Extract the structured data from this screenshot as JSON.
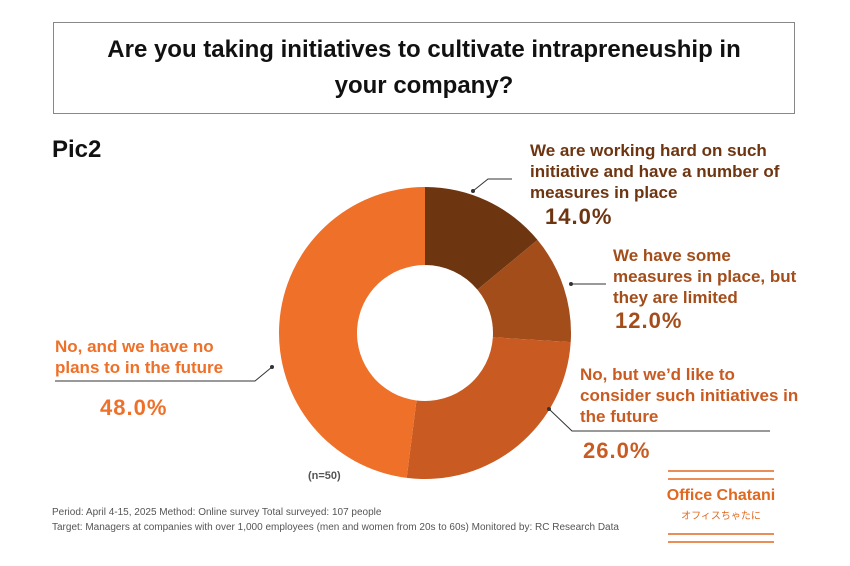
{
  "chart_data": {
    "type": "donut",
    "title": "Are you taking initiatives to cultivate intrapreneuship in your company?",
    "subtitle": "Pic2",
    "annotation": "(n=50)",
    "categories": [
      "We are working hard on such initiative and have a number of measures in place",
      "We have some measures in place, but they are limited",
      "No, but we’d like to consider such initiatives in the future",
      "No, and we have no plans to in the future"
    ],
    "values": [
      14,
      12,
      26,
      48
    ],
    "value_labels": [
      "14.0%",
      "12.0%",
      "26.0%",
      "48.0%"
    ],
    "colors": [
      "#6e3511",
      "#a34d1b",
      "#c95b22",
      "#ee7029"
    ],
    "notes": [
      "Period: April 4-15, 2025 Method: Online survey Total surveyed: 107 people",
      "Target: Managers at companies with over 1,000 employees (men and women from 20s to 60s) Monitored by: RC Research Data"
    ]
  },
  "logo": {
    "name": "Office Chatani",
    "subname": "オフィスちゃたに"
  }
}
